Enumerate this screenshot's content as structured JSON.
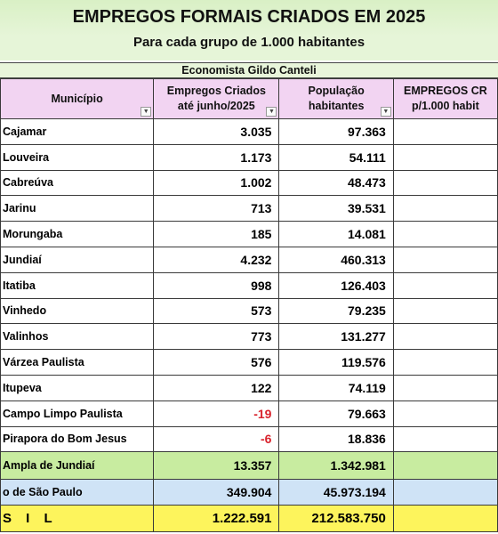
{
  "header": {
    "title": "EMPREGOS FORMAIS CRIADOS EM 2025",
    "subtitle": "Para cada grupo de 1.000 habitantes",
    "author": "Economista Gildo Canteli"
  },
  "columns": {
    "municipio": "Município",
    "empregos_l1": "Empregos Criados",
    "empregos_l2": "até junho/2025",
    "populacao_l1": "População",
    "populacao_l2": "habitantes",
    "ratio_l1": "EMPREGOS CR",
    "ratio_l2": "p/1.000 habit"
  },
  "rows": [
    {
      "name": "Cajamar",
      "empregos": "3.035",
      "populacao": "97.363"
    },
    {
      "name": "Louveira",
      "empregos": "1.173",
      "populacao": "54.111"
    },
    {
      "name": "Cabreúva",
      "empregos": "1.002",
      "populacao": "48.473"
    },
    {
      "name": "Jarinu",
      "empregos": "713",
      "populacao": "39.531"
    },
    {
      "name": "Morungaba",
      "empregos": "185",
      "populacao": "14.081"
    },
    {
      "name": "Jundiaí",
      "empregos": "4.232",
      "populacao": "460.313"
    },
    {
      "name": "Itatiba",
      "empregos": "998",
      "populacao": "126.403"
    },
    {
      "name": "Vinhedo",
      "empregos": "573",
      "populacao": "79.235"
    },
    {
      "name": "Valinhos",
      "empregos": "773",
      "populacao": "131.277"
    },
    {
      "name": "Várzea Paulista",
      "empregos": "576",
      "populacao": "119.576"
    },
    {
      "name": "Itupeva",
      "empregos": "122",
      "populacao": "74.119"
    },
    {
      "name": "Campo Limpo Paulista",
      "empregos": "-19",
      "populacao": "79.663"
    },
    {
      "name": "Pirapora do Bom Jesus",
      "empregos": "-6",
      "populacao": "18.836"
    }
  ],
  "totals": {
    "rmj": {
      "name": "Ampla de Jundiaí",
      "empregos": "13.357",
      "populacao": "1.342.981"
    },
    "rmsp": {
      "name": "o de São Paulo",
      "empregos": "349.904",
      "populacao": "45.973.194"
    },
    "brasil": {
      "name": "S I L",
      "empregos": "1.222.591",
      "populacao": "212.583.750"
    }
  },
  "colors": {
    "header_bg": "#e6f5d8",
    "column_header_bg": "#f2d4f2",
    "rmj_bg": "#c8eca0",
    "rmsp_bg": "#cfe3f6",
    "brasil_bg": "#fdf45c",
    "negative": "#d9232d"
  }
}
